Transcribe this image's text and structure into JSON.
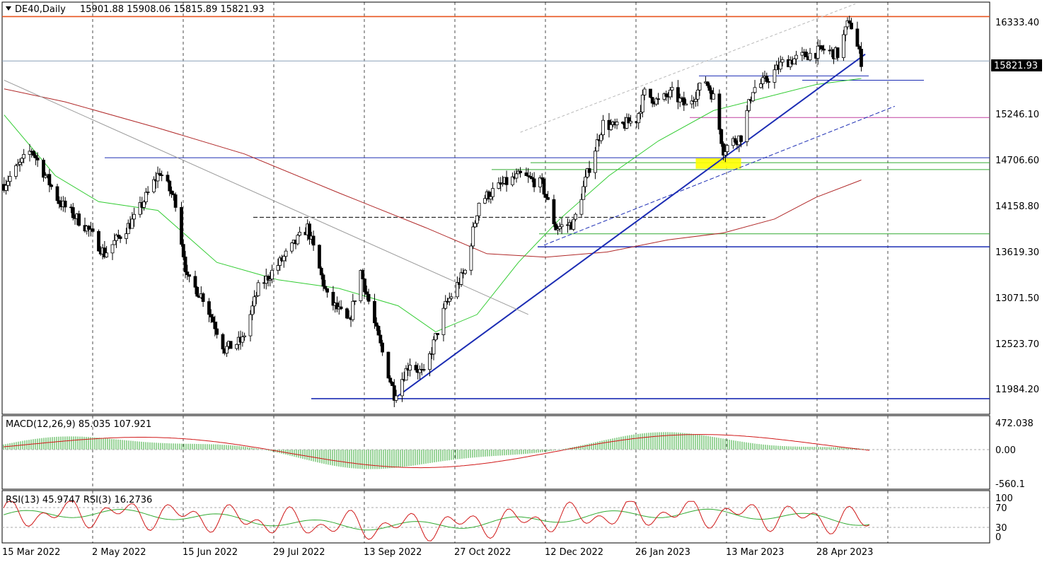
{
  "header": {
    "symbol": "DE40,Daily",
    "ohlc": "15901.88 15908.06 15815.89 15821.93"
  },
  "price_axis": {
    "labels": [
      "16333.40",
      "15246.10",
      "14706.60",
      "14158.80",
      "13619.30",
      "13071.50",
      "12523.70",
      "11984.20"
    ],
    "current_price_label": "15821.93"
  },
  "macd": {
    "label": "MACD(12,26,9) 85.035 107.921",
    "axis_labels": [
      "472.038",
      "0.00",
      "-560.1"
    ]
  },
  "rsi": {
    "label": "RSI(13) 45.9747  RSI(3) 16.2736",
    "axis_labels": [
      "100",
      "70",
      "30",
      "0"
    ]
  },
  "date_axis": {
    "labels": [
      "15 Mar 2022",
      "2 May 2022",
      "15 Jun 2022",
      "29 Jul 2022",
      "13 Sep 2022",
      "27 Oct 2022",
      "12 Dec 2022",
      "26 Jan 2023",
      "13 Mar 2023",
      "28 Apr 2023"
    ]
  },
  "chart_data": {
    "type": "candlestick",
    "instrument": "DE40",
    "timeframe": "Daily",
    "y_range": [
      11750,
      16500
    ],
    "price_anchors": [
      {
        "date": "2022-03-15",
        "close": 14400
      },
      {
        "date": "2022-03-29",
        "close": 14800
      },
      {
        "date": "2022-04-12",
        "close": 14200
      },
      {
        "date": "2022-04-26",
        "close": 13900
      },
      {
        "date": "2022-05-05",
        "close": 13600
      },
      {
        "date": "2022-05-20",
        "close": 14000
      },
      {
        "date": "2022-06-02",
        "close": 14550
      },
      {
        "date": "2022-06-10",
        "close": 14200
      },
      {
        "date": "2022-06-16",
        "close": 13300
      },
      {
        "date": "2022-06-24",
        "close": 13100
      },
      {
        "date": "2022-07-05",
        "close": 12500
      },
      {
        "date": "2022-07-14",
        "close": 12600
      },
      {
        "date": "2022-07-22",
        "close": 13200
      },
      {
        "date": "2022-08-02",
        "close": 13500
      },
      {
        "date": "2022-08-16",
        "close": 13900
      },
      {
        "date": "2022-08-26",
        "close": 13100
      },
      {
        "date": "2022-09-06",
        "close": 12800
      },
      {
        "date": "2022-09-12",
        "close": 13400
      },
      {
        "date": "2022-09-20",
        "close": 12700
      },
      {
        "date": "2022-09-29",
        "close": 11980
      },
      {
        "date": "2022-10-07",
        "close": 12350
      },
      {
        "date": "2022-10-14",
        "close": 12200
      },
      {
        "date": "2022-10-25",
        "close": 13000
      },
      {
        "date": "2022-11-04",
        "close": 13400
      },
      {
        "date": "2022-11-11",
        "close": 14200
      },
      {
        "date": "2022-11-23",
        "close": 14400
      },
      {
        "date": "2022-12-02",
        "close": 14500
      },
      {
        "date": "2022-12-13",
        "close": 14400
      },
      {
        "date": "2022-12-20",
        "close": 13900
      },
      {
        "date": "2022-12-29",
        "close": 13950
      },
      {
        "date": "2023-01-06",
        "close": 14600
      },
      {
        "date": "2023-01-13",
        "close": 15100
      },
      {
        "date": "2023-01-20",
        "close": 15050
      },
      {
        "date": "2023-01-30",
        "close": 15150
      },
      {
        "date": "2023-02-03",
        "close": 15450
      },
      {
        "date": "2023-02-10",
        "close": 15350
      },
      {
        "date": "2023-02-17",
        "close": 15450
      },
      {
        "date": "2023-02-24",
        "close": 15300
      },
      {
        "date": "2023-03-06",
        "close": 15600
      },
      {
        "date": "2023-03-10",
        "close": 15400
      },
      {
        "date": "2023-03-15",
        "close": 14800
      },
      {
        "date": "2023-03-20",
        "close": 14900
      },
      {
        "date": "2023-03-24",
        "close": 14950
      },
      {
        "date": "2023-03-30",
        "close": 15500
      },
      {
        "date": "2023-04-06",
        "close": 15600
      },
      {
        "date": "2023-04-14",
        "close": 15800
      },
      {
        "date": "2023-04-21",
        "close": 15850
      },
      {
        "date": "2023-04-28",
        "close": 15900
      },
      {
        "date": "2023-05-05",
        "close": 15950
      },
      {
        "date": "2023-05-12",
        "close": 15900
      },
      {
        "date": "2023-05-18",
        "close": 16300
      },
      {
        "date": "2023-05-24",
        "close": 15821.93
      }
    ],
    "horizontal_levels": [
      {
        "price": 16333.4,
        "color": "#e8541e"
      },
      {
        "price": 15821.93,
        "color": "#8aa0b8"
      },
      {
        "price": 15650,
        "color": "#1c2db4"
      },
      {
        "price": 15600,
        "color": "#1c2db4"
      },
      {
        "price": 15170,
        "color": "#c040a0"
      },
      {
        "price": 14706.6,
        "color": "#1c2db4"
      },
      {
        "price": 14650,
        "color": "#33aa33"
      },
      {
        "price": 14570,
        "color": "#33aa33"
      },
      {
        "price": 14020,
        "color": "#000000"
      },
      {
        "price": 13830,
        "color": "#33aa33"
      },
      {
        "price": 13680,
        "color": "#1c2db4"
      },
      {
        "price": 11930,
        "color": "#1c2db4"
      }
    ],
    "trendlines": [
      {
        "from": {
          "date": "2022-09-29",
          "price": 11930
        },
        "to": {
          "date": "2023-05-26",
          "price": 15900
        },
        "color": "#1c2db4"
      },
      {
        "from": {
          "date": "2022-12-14",
          "price": 13700
        },
        "to": {
          "date": "2023-06-10",
          "price": 15300
        },
        "color": "#1c2db4"
      },
      {
        "from": {
          "date": "2022-03-15",
          "price": 15600
        },
        "to": {
          "date": "2022-12-06",
          "price": 12900
        },
        "color": "#9a9a9a"
      },
      {
        "from": {
          "date": "2022-12-02",
          "price": 15000
        },
        "to": {
          "date": "2023-05-21",
          "price": 16480
        },
        "color": "#b8b8b8"
      }
    ],
    "highlight_zone": {
      "from": "2023-03-01",
      "to": "2023-03-24",
      "price_from": 14580,
      "price_to": 14700,
      "color": "#ffff00"
    },
    "moving_averages": [
      {
        "color": "#33cc33",
        "points": [
          [
            "2022-03-15",
            15200
          ],
          [
            "2022-04-10",
            14500
          ],
          [
            "2022-05-02",
            14200
          ],
          [
            "2022-06-01",
            14100
          ],
          [
            "2022-07-01",
            13500
          ],
          [
            "2022-08-01",
            13300
          ],
          [
            "2022-09-01",
            13200
          ],
          [
            "2022-10-01",
            13000
          ],
          [
            "2022-10-20",
            12700
          ],
          [
            "2022-11-10",
            12900
          ],
          [
            "2022-12-01",
            13500
          ],
          [
            "2022-12-22",
            14000
          ],
          [
            "2023-01-16",
            14500
          ],
          [
            "2023-02-10",
            14900
          ],
          [
            "2023-03-10",
            15250
          ],
          [
            "2023-04-05",
            15400
          ],
          [
            "2023-05-01",
            15550
          ],
          [
            "2023-05-24",
            15620
          ]
        ]
      },
      {
        "color": "#b02828",
        "points": [
          [
            "2022-03-15",
            15500
          ],
          [
            "2022-04-15",
            15350
          ],
          [
            "2022-06-01",
            15050
          ],
          [
            "2022-07-15",
            14750
          ],
          [
            "2022-09-01",
            14300
          ],
          [
            "2022-10-15",
            13900
          ],
          [
            "2022-11-15",
            13600
          ],
          [
            "2022-12-15",
            13560
          ],
          [
            "2023-01-15",
            13620
          ],
          [
            "2023-02-15",
            13760
          ],
          [
            "2023-03-15",
            13840
          ],
          [
            "2023-04-10",
            14000
          ],
          [
            "2023-05-01",
            14250
          ],
          [
            "2023-05-24",
            14450
          ]
        ]
      }
    ]
  }
}
